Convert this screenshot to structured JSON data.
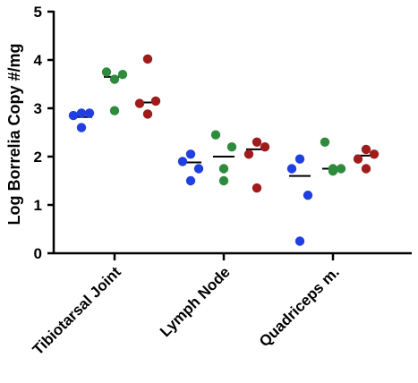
{
  "chart_data": {
    "type": "scatter",
    "ylabel": "Log Borrelia Copy #/mg",
    "xlabel": "",
    "ylim": [
      0,
      5
    ],
    "yticks": [
      "0",
      "1",
      "2",
      "3",
      "4",
      "5"
    ],
    "categories": [
      "Tibiotarsal Joint",
      "Lymph Node",
      "Quadriceps m."
    ],
    "grid": false,
    "legend": "none",
    "series": [
      {
        "color": "#1f3fe0",
        "points": [
          [
            2.9,
            2.85,
            2.9,
            2.6
          ],
          [
            2.05,
            1.9,
            1.75,
            1.5
          ],
          [
            1.95,
            1.75,
            1.2,
            0.25
          ]
        ],
        "means": [
          2.82,
          1.88,
          1.6
        ]
      },
      {
        "color": "#2e8b3e",
        "points": [
          [
            3.75,
            3.7,
            3.6,
            2.95
          ],
          [
            2.45,
            2.2,
            1.75,
            1.5
          ],
          [
            2.3,
            1.75,
            1.75,
            1.7
          ]
        ],
        "means": [
          3.65,
          2.0,
          1.75
        ]
      },
      {
        "color": "#a01c1c",
        "points": [
          [
            4.02,
            3.15,
            3.1,
            2.88
          ],
          [
            2.3,
            2.2,
            2.05,
            1.35
          ],
          [
            2.15,
            2.05,
            1.95,
            1.75
          ]
        ],
        "means": [
          3.12,
          2.15,
          2.02
        ]
      }
    ]
  }
}
